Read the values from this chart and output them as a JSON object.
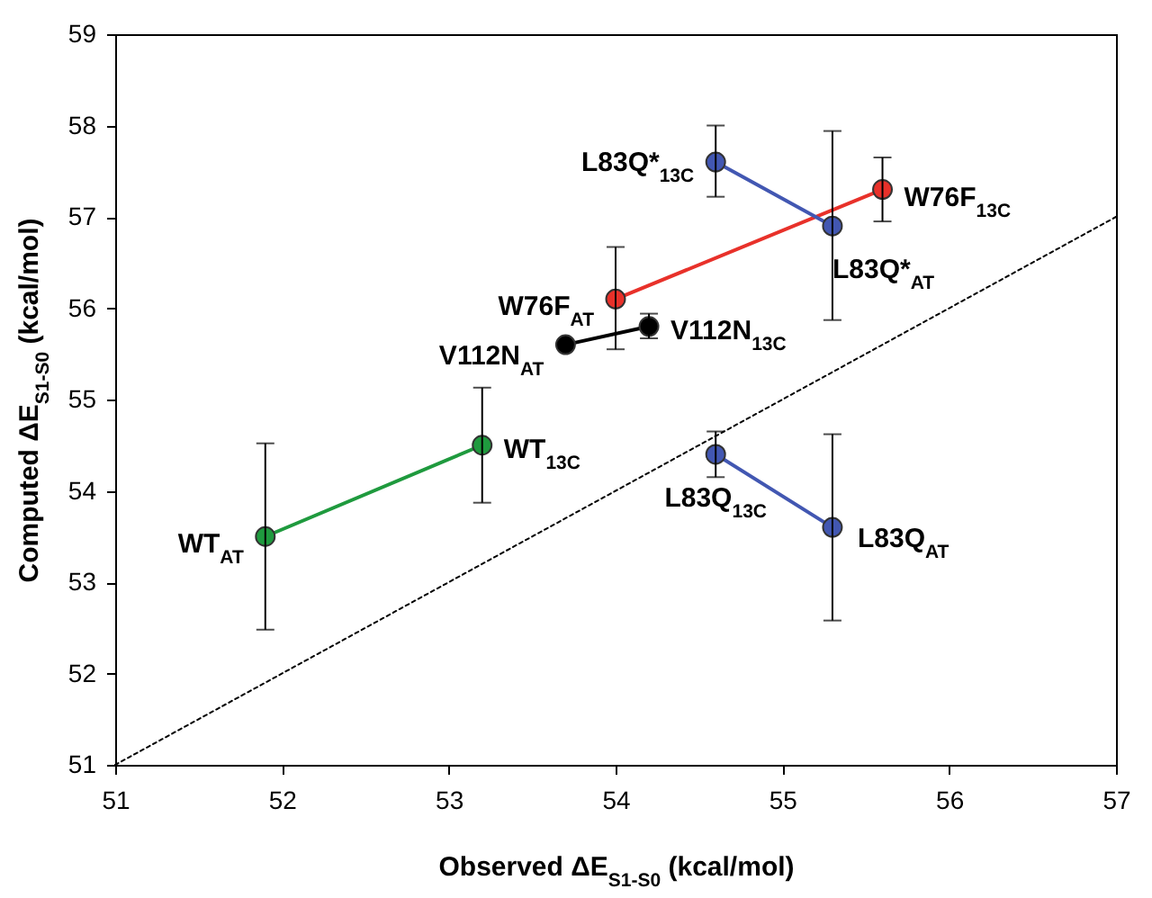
{
  "chart_data": {
    "type": "scatter",
    "xlabel": "Observed ΔE$_{S1-S0}$ (kcal/mol)",
    "ylabel": "Computed ΔE$_{S1-S0}$ (kcal/mol)",
    "xlim": [
      51,
      57
    ],
    "xticks": [
      51,
      52,
      53,
      54,
      55,
      56,
      57
    ],
    "ylim": [
      51,
      59
    ],
    "yticks": [
      51,
      52,
      53,
      54,
      55,
      56,
      57,
      58,
      59
    ],
    "grid": false,
    "marker": "circle",
    "series": [
      {
        "type": "line",
        "color": "#000000",
        "x": [
          51,
          57
        ],
        "values": [
          51,
          57
        ],
        "marker": "none",
        "line_style": "dotted"
      },
      {
        "type": "line",
        "color": "#1f9a3e",
        "x": [
          51.9,
          53.2
        ],
        "values": [
          53.5,
          54.5
        ],
        "errors": [
          [
            52.48,
            54.52
          ],
          [
            53.87,
            55.13
          ]
        ]
      },
      {
        "type": "line",
        "color": "#000000",
        "x": [
          53.7,
          54.2
        ],
        "values": [
          55.6,
          55.8
        ],
        "errors": [
          null,
          [
            55.67,
            55.94
          ]
        ]
      },
      {
        "type": "line",
        "color": "#e8312a",
        "x": [
          54.0,
          55.6
        ],
        "values": [
          56.1,
          57.3
        ],
        "errors": [
          [
            55.55,
            56.67
          ],
          [
            56.95,
            57.65
          ]
        ]
      },
      {
        "type": "line",
        "color": "#4257b2",
        "x": [
          54.6,
          55.3
        ],
        "values": [
          57.6,
          56.9
        ],
        "errors": [
          [
            57.22,
            58.0
          ],
          [
            55.87,
            57.94
          ]
        ]
      },
      {
        "type": "line",
        "color": "#4257b2",
        "x": [
          54.6,
          55.3
        ],
        "values": [
          54.4,
          53.6
        ],
        "errors": [
          [
            54.15,
            54.65
          ],
          [
            52.58,
            54.62
          ]
        ]
      }
    ],
    "annotations": [
      {
        "text": "WT$_{AT}$",
        "x": 51.9,
        "y": 53.5
      },
      {
        "text": "WT$_{13C}$",
        "x": 53.2,
        "y": 54.5
      },
      {
        "text": "V112N$_{AT}$",
        "x": 53.7,
        "y": 55.6
      },
      {
        "text": "V112N$_{13C}$",
        "x": 54.2,
        "y": 55.8
      },
      {
        "text": "W76F$_{AT}$",
        "x": 54.0,
        "y": 56.1
      },
      {
        "text": "W76F$_{13C}$",
        "x": 55.6,
        "y": 57.3
      },
      {
        "text": "L83Q*$_{13C}$",
        "x": 54.6,
        "y": 57.6
      },
      {
        "text": "L83Q*$_{AT}$",
        "x": 55.3,
        "y": 56.9
      },
      {
        "text": "L83Q$_{13C}$",
        "x": 54.6,
        "y": 54.4
      },
      {
        "text": "L83Q$_{AT}$",
        "x": 55.3,
        "y": 53.6
      }
    ]
  }
}
